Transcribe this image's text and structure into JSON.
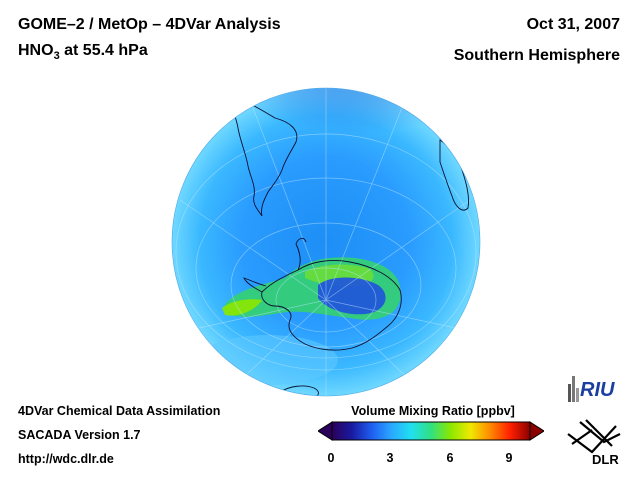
{
  "header": {
    "title_line1": "GOME–2 / MetOp – 4DVar Analysis",
    "species": "HNO",
    "species_sub": "3",
    "level": " at 55.4 hPa",
    "date": "Oct 31, 2007",
    "hemisphere": "Southern Hemisphere"
  },
  "footer": {
    "line1": "4DVar Chemical Data Assimilation",
    "line2": "SACADA Version 1.7",
    "line3": "http://wdc.dlr.de"
  },
  "colorbar": {
    "title": "Volume Mixing Ratio [ppbv]",
    "ticks": [
      "0",
      "3",
      "6",
      "9"
    ],
    "range": [
      0,
      10
    ],
    "colors": [
      "#2a005a",
      "#1a1aa0",
      "#1e5ef0",
      "#2aa8ff",
      "#20e0f0",
      "#30e080",
      "#8ce800",
      "#f0e800",
      "#ff8800",
      "#ff2000",
      "#8a0000"
    ]
  },
  "logos": {
    "riu": "RIU",
    "dlr": "DLR"
  },
  "map": {
    "projection": "orthographic",
    "view": "south-polar",
    "continents": [
      "South America",
      "Antarctica",
      "Africa",
      "Australia"
    ]
  }
}
